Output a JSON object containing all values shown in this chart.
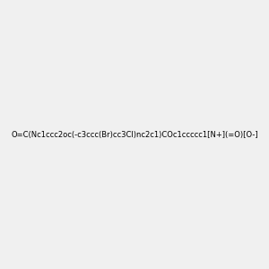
{
  "smiles": "O=C(Nc1ccc2oc(-c3ccc(Br)cc3Cl)nc2c1)COc1ccccc1[N+](=O)[O-]",
  "image_size": 300,
  "background_color": "#f0f0f0",
  "title": ""
}
